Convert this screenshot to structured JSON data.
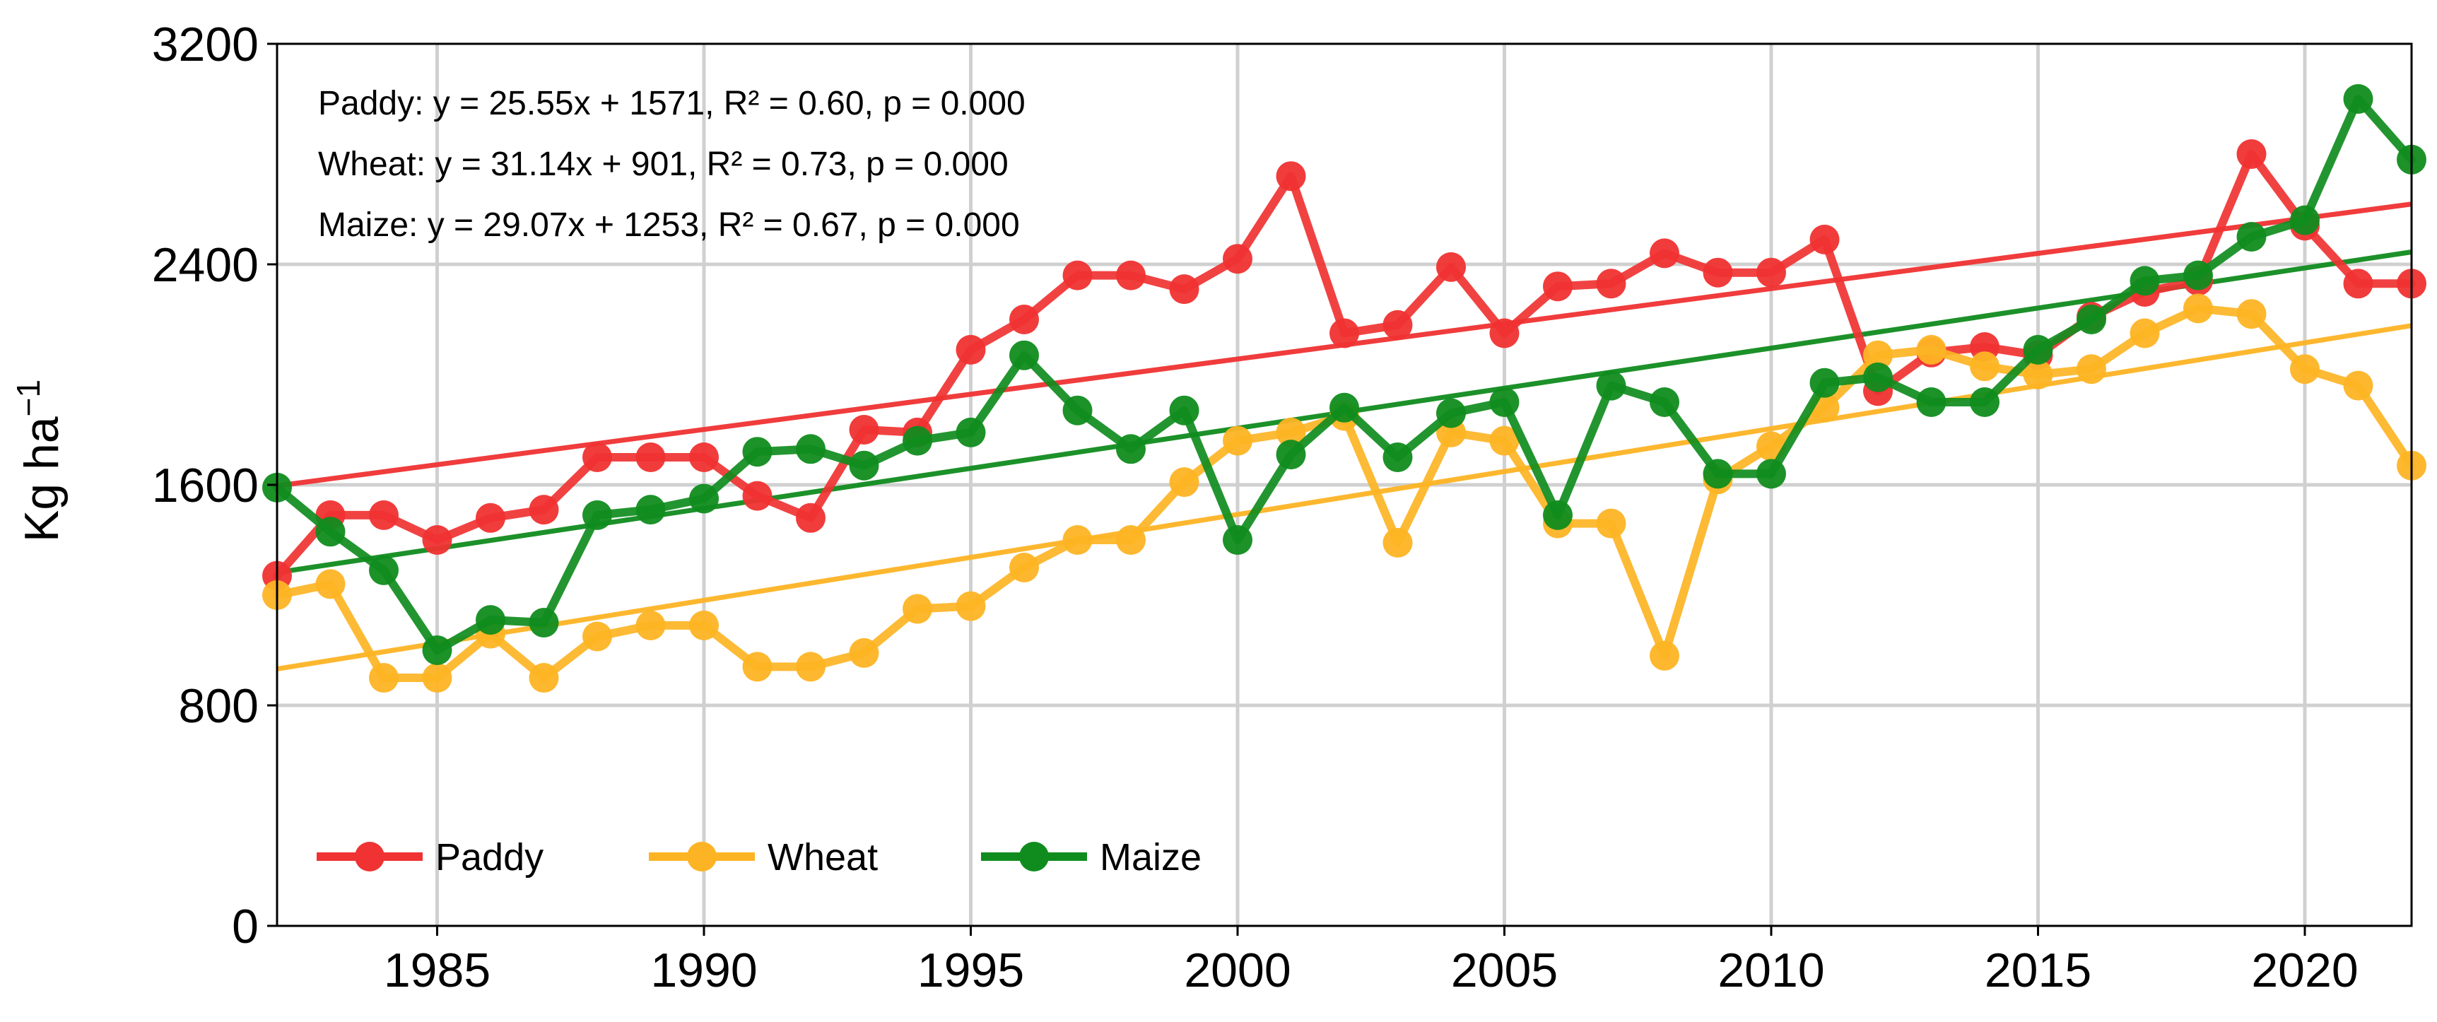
{
  "chart_data": {
    "type": "line",
    "title": "",
    "xlabel": "",
    "ylabel": "Kg ha",
    "ylabel_superscript": "−1",
    "xlim": [
      1982,
      2022
    ],
    "ylim": [
      0,
      3200
    ],
    "xticks": [
      1985,
      1990,
      1995,
      2000,
      2005,
      2010,
      2015,
      2020
    ],
    "yticks": [
      0,
      800,
      1600,
      2400,
      3200
    ],
    "grid": true,
    "legend_position": "lower-left",
    "x": [
      1982,
      1983,
      1984,
      1985,
      1986,
      1987,
      1988,
      1989,
      1990,
      1991,
      1992,
      1993,
      1994,
      1995,
      1996,
      1997,
      1998,
      1999,
      2000,
      2001,
      2002,
      2003,
      2004,
      2005,
      2006,
      2007,
      2008,
      2009,
      2010,
      2011,
      2012,
      2013,
      2014,
      2015,
      2016,
      2017,
      2018,
      2019,
      2020,
      2021,
      2022
    ],
    "series": [
      {
        "name": "Paddy",
        "color": "#f03232",
        "values": [
          1270,
          1490,
          1490,
          1400,
          1480,
          1510,
          1700,
          1700,
          1700,
          1560,
          1480,
          1800,
          1790,
          2090,
          2200,
          2360,
          2360,
          2310,
          2420,
          2720,
          2150,
          2180,
          2390,
          2150,
          2320,
          2330,
          2440,
          2370,
          2370,
          2490,
          1940,
          2080,
          2100,
          2070,
          2210,
          2300,
          2340,
          2800,
          2540,
          2330,
          2330
        ],
        "trend": {
          "slope": 25.55,
          "intercept": 1571
        }
      },
      {
        "name": "Wheat",
        "color": "#fdb424",
        "values": [
          1200,
          1240,
          900,
          900,
          1060,
          900,
          1050,
          1090,
          1090,
          940,
          940,
          990,
          1150,
          1160,
          1300,
          1400,
          1400,
          1610,
          1760,
          1790,
          1850,
          1390,
          1790,
          1760,
          1460,
          1460,
          980,
          1620,
          1740,
          1880,
          2070,
          2090,
          2030,
          2000,
          2020,
          2150,
          2240,
          2220,
          2020,
          1960,
          1670
        ],
        "trend": {
          "slope": 31.14,
          "intercept": 901
        }
      },
      {
        "name": "Maize",
        "color": "#108c1e",
        "values": [
          1590,
          1430,
          1290,
          1000,
          1110,
          1100,
          1490,
          1510,
          1550,
          1720,
          1730,
          1670,
          1760,
          1790,
          2070,
          1870,
          1730,
          1870,
          1400,
          1710,
          1880,
          1700,
          1860,
          1900,
          1490,
          1960,
          1900,
          1640,
          1640,
          1970,
          1990,
          1900,
          1900,
          2090,
          2200,
          2340,
          2360,
          2500,
          2560,
          3000,
          2780
        ],
        "trend": {
          "slope": 29.07,
          "intercept": 1253
        }
      }
    ],
    "annotations": [
      "Paddy: y = 25.55x + 1571,  R² = 0.60,  p = 0.000",
      "Wheat: y = 31.14x + 901,  R² = 0.73,  p = 0.000",
      "Maize: y = 29.07x + 1253,  R² = 0.67,  p = 0.000"
    ]
  }
}
